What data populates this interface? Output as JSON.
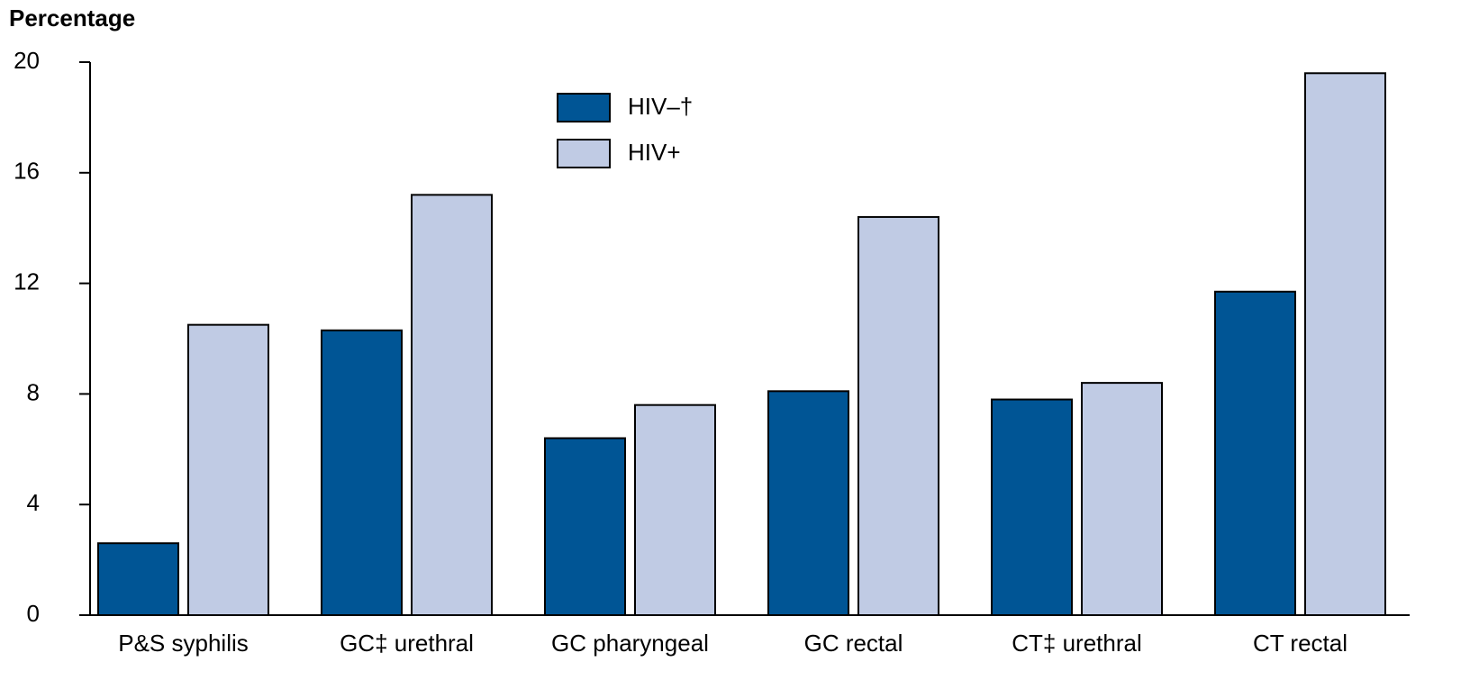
{
  "chart_data": {
    "type": "bar",
    "y_axis_label": "Percentage",
    "categories": [
      "P&S syphilis",
      "GC‡ urethral",
      "GC pharyngeal",
      "GC rectal",
      "CT‡ urethral",
      "CT rectal"
    ],
    "series": [
      {
        "name": "HIV–†",
        "color": "#005595",
        "values": [
          2.6,
          10.3,
          6.4,
          8.1,
          7.8,
          11.7
        ]
      },
      {
        "name": "HIV+",
        "color": "#c0cbe4",
        "values": [
          10.5,
          15.2,
          7.6,
          14.4,
          8.4,
          19.6
        ]
      }
    ],
    "ylim": [
      0,
      20
    ],
    "yticks": [
      0,
      4,
      8,
      12,
      16,
      20
    ],
    "grid": false,
    "legend": "top"
  }
}
